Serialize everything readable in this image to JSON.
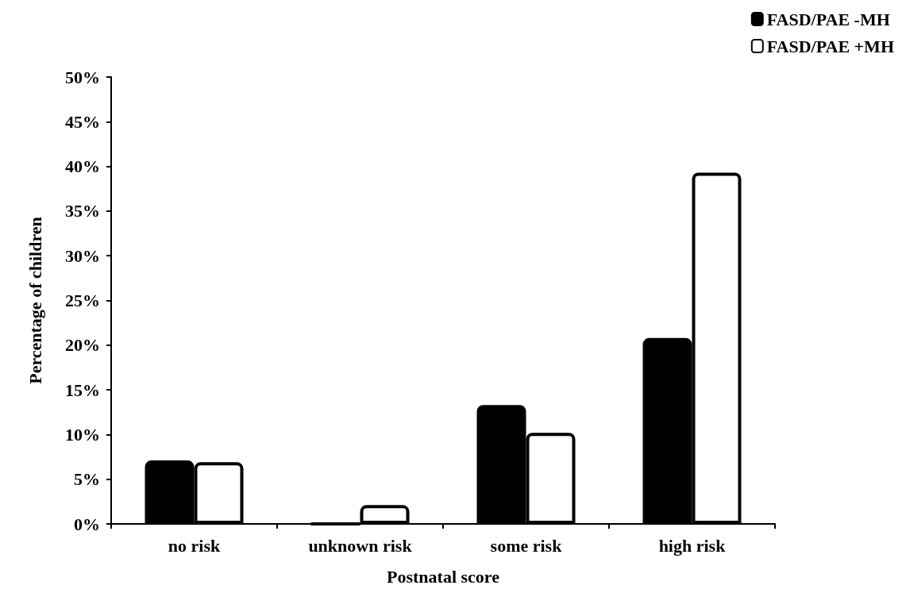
{
  "chart_data": {
    "type": "bar",
    "xlabel": "Postnatal score",
    "ylabel": "Percentage of children",
    "categories": [
      "no risk",
      "unknown risk",
      "some risk",
      "high risk"
    ],
    "series": [
      {
        "name": "FASD/PAE -MH",
        "color": "#000000",
        "values": [
          7.1,
          0,
          13.3,
          20.8
        ]
      },
      {
        "name": "FASD/PAE +MH",
        "color": "#ffffff",
        "values": [
          6.9,
          2.1,
          10.2,
          39.3
        ]
      }
    ],
    "ylim": [
      0,
      50
    ],
    "yticks": [
      {
        "value": 0,
        "label": "0%"
      },
      {
        "value": 5,
        "label": "5%"
      },
      {
        "value": 10,
        "label": "10%"
      },
      {
        "value": 15,
        "label": "15%"
      },
      {
        "value": 20,
        "label": "20%"
      },
      {
        "value": 25,
        "label": "25%"
      },
      {
        "value": 30,
        "label": "30%"
      },
      {
        "value": 35,
        "label": "35%"
      },
      {
        "value": 40,
        "label": "40%"
      },
      {
        "value": 45,
        "label": "45%"
      },
      {
        "value": 50,
        "label": "50%"
      }
    ],
    "grid": false,
    "legend": "top right"
  }
}
